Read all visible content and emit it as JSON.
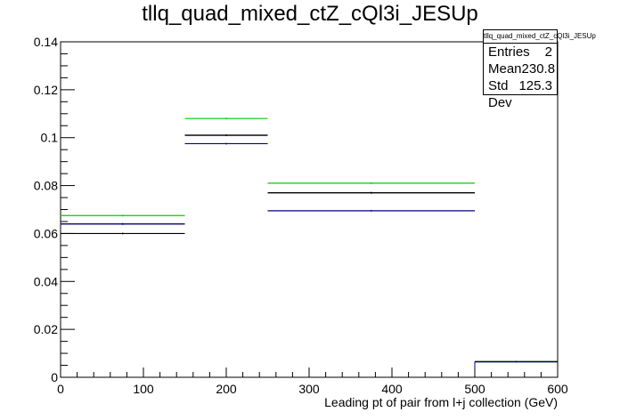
{
  "chart_data": {
    "type": "step",
    "title": "tllq_quad_mixed_ctZ_cQl3i_JESUp",
    "xlabel": "Leading pt of pair from l+j collection (GeV)",
    "ylabel": "",
    "xlim": [
      0,
      600
    ],
    "ylim": [
      0,
      0.14
    ],
    "x_ticks": [
      0,
      100,
      200,
      300,
      400,
      500,
      600
    ],
    "y_ticks": [
      0,
      0.02,
      0.04,
      0.06,
      0.08,
      0.1,
      0.12,
      0.14
    ],
    "bin_edges": [
      0,
      150,
      250,
      500,
      600
    ],
    "series": [
      {
        "color": "#00cc00",
        "values": [
          0.0675,
          0.108,
          0.081,
          0.0065
        ]
      },
      {
        "color": "#000000",
        "values": [
          0.064,
          0.101,
          0.077,
          0.0065
        ]
      },
      {
        "color": "#000000",
        "values": [
          0.06,
          0.101,
          0.077,
          0.0065
        ]
      },
      {
        "color": "#00008b",
        "values": [
          0.064,
          0.0975,
          0.0695,
          0.0065
        ]
      }
    ],
    "stats": {
      "name": "tllq_quad_mixed_ctZ_cQl3i_JESUp",
      "rows": [
        {
          "label": "Entries",
          "value": "2"
        },
        {
          "label": "Mean",
          "value": "230.8"
        },
        {
          "label": "Std Dev",
          "value": "125.3"
        }
      ]
    }
  }
}
